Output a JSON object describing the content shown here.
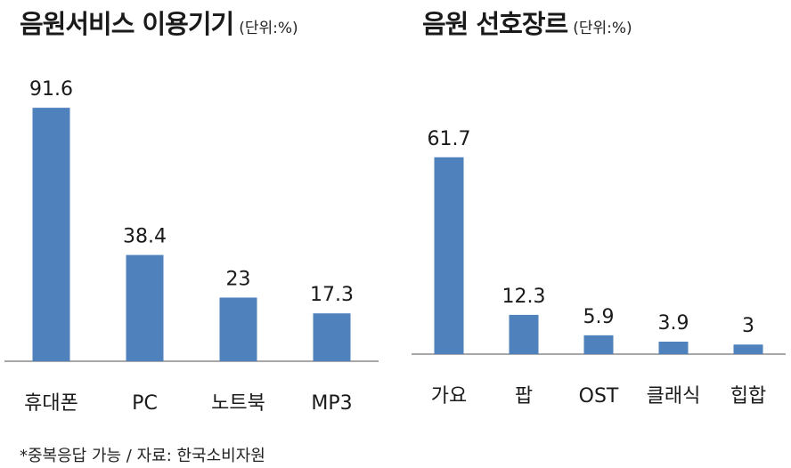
{
  "chart_data": [
    {
      "type": "bar",
      "title": "음원서비스 이용기기",
      "unit": "(단위:%)",
      "categories": [
        "휴대폰",
        "PC",
        "노트북",
        "MP3"
      ],
      "values": [
        91.6,
        38.4,
        23,
        17.3
      ],
      "value_labels": [
        "91.6",
        "38.4",
        "23",
        "17.3"
      ],
      "ylim": [
        0,
        100
      ],
      "bar_color": "#4f81bd",
      "grid": false,
      "legend": "none"
    },
    {
      "type": "bar",
      "title": "음원 선호장르",
      "unit": "(단위:%)",
      "categories": [
        "가요",
        "팝",
        "OST",
        "클래식",
        "힙합"
      ],
      "values": [
        61.7,
        12.3,
        5.9,
        3.9,
        3
      ],
      "value_labels": [
        "61.7",
        "12.3",
        "5.9",
        "3.9",
        "3"
      ],
      "ylim": [
        0,
        70
      ],
      "bar_color": "#4f81bd",
      "grid": false,
      "legend": "none"
    }
  ],
  "footnote": "*중복응답 가능 / 자료: 한국소비자원"
}
